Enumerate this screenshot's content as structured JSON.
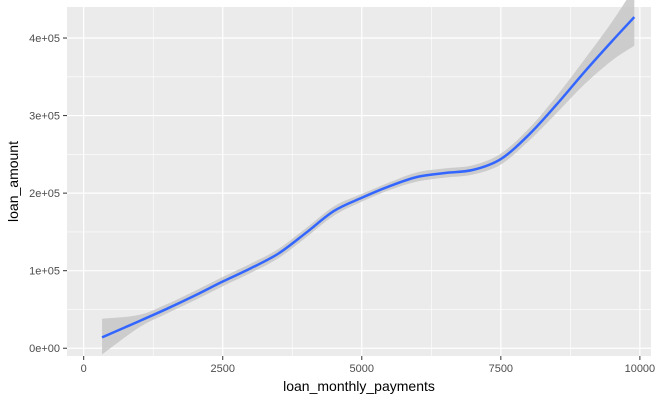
{
  "chart_data": {
    "type": "line",
    "title": "",
    "xlabel": "loan_monthly_payments",
    "ylabel": "loan_amount",
    "xlim": [
      -300,
      10200
    ],
    "ylim": [
      -10000,
      440000
    ],
    "x_ticks": [
      0,
      2500,
      5000,
      7500,
      10000
    ],
    "x_tick_labels": [
      "0",
      "2500",
      "5000",
      "7500",
      "10000"
    ],
    "y_ticks": [
      0,
      100000,
      200000,
      300000,
      400000
    ],
    "y_tick_labels": [
      "0e+00",
      "1e+05",
      "2e+05",
      "3e+05",
      "4e+05"
    ],
    "grid": true,
    "legend": "none",
    "colors": {
      "panel": "#ebebeb",
      "grid_major": "#ffffff",
      "line": "#3366ff",
      "ribbon": "#c7c7c7"
    },
    "series": [
      {
        "x": [
          330,
          1000,
          1500,
          2000,
          2500,
          3000,
          3500,
          4000,
          4500,
          5000,
          5500,
          6000,
          6500,
          7000,
          7500,
          8000,
          8500,
          9000,
          9500,
          9900
        ],
        "y": [
          14000,
          35000,
          51000,
          68000,
          86000,
          103000,
          122000,
          149000,
          177000,
          194000,
          209000,
          221000,
          226000,
          230000,
          244000,
          275000,
          314000,
          356000,
          396000,
          427000
        ],
        "lower": [
          -8000,
          27000,
          45000,
          62000,
          80000,
          97000,
          116000,
          143000,
          171000,
          189000,
          204000,
          215000,
          220000,
          224000,
          237000,
          267000,
          303000,
          340000,
          371000,
          390000
        ],
        "upper": [
          38000,
          43000,
          57000,
          74000,
          92000,
          109000,
          128000,
          155000,
          183000,
          199000,
          214000,
          227000,
          232000,
          236000,
          251000,
          283000,
          325000,
          372000,
          421000,
          465000
        ]
      }
    ]
  }
}
